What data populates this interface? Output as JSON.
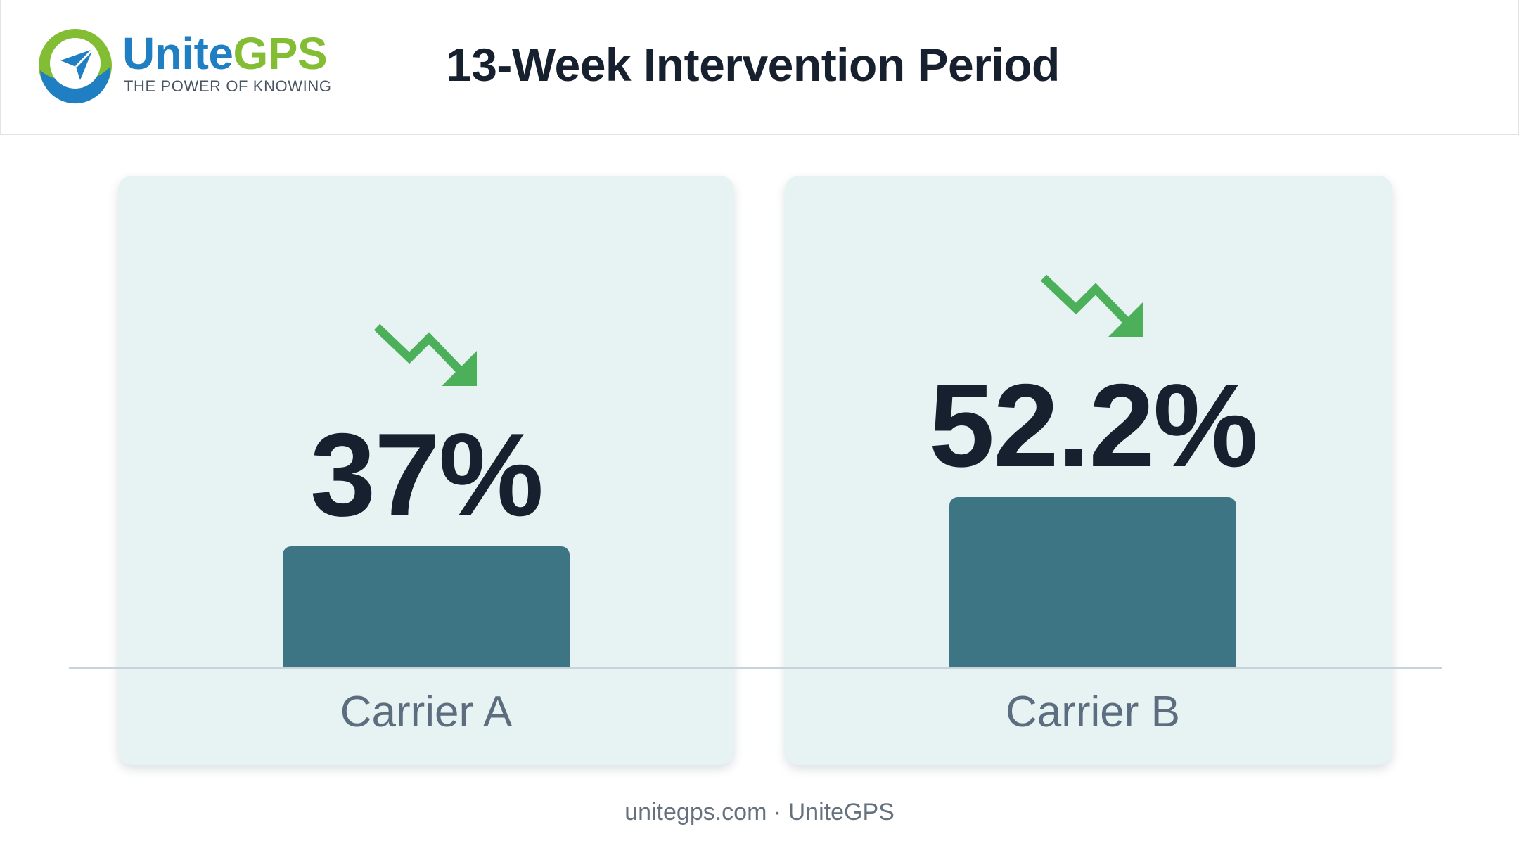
{
  "brand": {
    "name_part1": "Unite",
    "name_part2": "GPS",
    "tagline": "THE POWER OF KNOWING",
    "colors": {
      "blue": "#1f7fc2",
      "green": "#82bd33"
    }
  },
  "header": {
    "title": "13-Week Intervention Period"
  },
  "chart_data": {
    "type": "bar",
    "title": "13-Week Intervention Period",
    "categories": [
      "Carrier A",
      "Carrier B"
    ],
    "values": [
      37,
      52.2
    ],
    "value_labels": [
      "37%",
      "52.2%"
    ],
    "unit": "%",
    "trend": [
      "down",
      "down"
    ],
    "xlabel": "",
    "ylabel": "",
    "grid": false,
    "legend": "none",
    "bar_color": "#3e7584",
    "trend_color": "#4cb05a"
  },
  "footer": {
    "text": "unitegps.com · UniteGPS"
  }
}
